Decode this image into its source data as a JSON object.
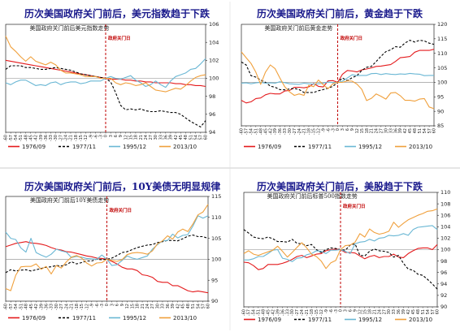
{
  "colors": {
    "title": "#1a1a8c",
    "s1976": "#e41a1c",
    "s1977": "#000000",
    "s1995": "#6ab7d4",
    "s2013": "#f0a03c",
    "marker": "#c00000"
  },
  "xtick_labels": [
    "-60",
    "-57",
    "-54",
    "-51",
    "-48",
    "-45",
    "-42",
    "-39",
    "-36",
    "-33",
    "-30",
    "-27",
    "-24",
    "-21",
    "-18",
    "-15",
    "-12",
    "-9",
    "-6",
    "-3",
    "0",
    "3",
    "6",
    "9",
    "12",
    "15",
    "18",
    "21",
    "24",
    "27",
    "30",
    "33",
    "36",
    "39",
    "42",
    "45",
    "48",
    "51",
    "54",
    "57",
    "60"
  ],
  "legend": [
    "1976/09",
    "1977/11",
    "1995/12",
    "2013/10"
  ],
  "chart_data": [
    {
      "type": "line",
      "title": "历次美国政府关门前后，美元指数趋于下跌",
      "subtitle": "美国政府关门前后美元指数走势",
      "annotation": "政府关门日",
      "ylim": [
        94,
        106
      ],
      "yticks": [
        94,
        96,
        98,
        100,
        102,
        104,
        106
      ],
      "series": [
        {
          "name": "1976/09",
          "values": [
            102,
            101.9,
            101.8,
            101.7,
            101.6,
            101.5,
            101.4,
            101.3,
            101.2,
            101.1,
            101,
            100.9,
            100.8,
            100.7,
            100.6,
            100.5,
            100.4,
            100.3,
            100.2,
            100.1,
            100,
            99.9,
            99.9,
            99.9,
            99.8,
            99.8,
            99.7,
            99.7,
            99.6,
            99.6,
            99.5,
            99.5,
            99.5,
            99.5,
            99.4,
            99.4,
            99.3,
            99.3,
            99.2,
            99.2,
            99.1
          ]
        },
        {
          "name": "1977/11",
          "values": [
            101,
            101.4,
            101.4,
            101.4,
            101.2,
            101.2,
            101.1,
            101,
            101,
            101.1,
            101.2,
            101.1,
            101,
            100.9,
            100.7,
            100.5,
            100.4,
            100.3,
            100.2,
            100.1,
            100,
            99.6,
            98.4,
            97,
            96.5,
            96.6,
            96.5,
            96.6,
            96.4,
            96.3,
            96.3,
            96.4,
            96.3,
            96.2,
            96.2,
            96,
            95.6,
            95.2,
            94.9,
            94.6,
            95.3
          ]
        },
        {
          "name": "1995/12",
          "values": [
            99.5,
            99.3,
            99.6,
            99.8,
            99.8,
            99.5,
            99.2,
            99.3,
            99.2,
            99.5,
            99.6,
            99.3,
            99.5,
            99.6,
            99.6,
            99.4,
            99.5,
            99.7,
            99.7,
            99.7,
            100,
            100.2,
            100,
            99.9,
            100.1,
            100.3,
            99.8,
            99.5,
            99.1,
            99.3,
            99.7,
            99.3,
            99,
            99.7,
            100.2,
            100.4,
            100.6,
            101,
            101.1,
            101.6,
            102.2
          ]
        },
        {
          "name": "2013/10",
          "values": [
            104.7,
            103.5,
            103,
            102.4,
            101.9,
            102.4,
            101.9,
            101.7,
            101.5,
            101.8,
            101.5,
            100.9,
            100.6,
            100.6,
            100.5,
            100.4,
            100.2,
            100.2,
            100.2,
            100,
            100,
            100,
            99.5,
            99.3,
            99.5,
            99.4,
            99.2,
            99.3,
            99.5,
            99.1,
            98.7,
            98.6,
            98.5,
            98.7,
            98.9,
            98.8,
            99.2,
            99.7,
            100.1,
            100.3,
            100.4
          ]
        }
      ]
    },
    {
      "type": "line",
      "title": "历次美国政府关门前后，黄金趋于下跌",
      "subtitle": "美国政府关门前后黄金走势",
      "annotation": "政府关门日",
      "ylim": [
        85,
        120
      ],
      "yticks": [
        85,
        90,
        95,
        100,
        105,
        110,
        115,
        120
      ],
      "series": [
        {
          "name": "1976/09",
          "values": [
            93.8,
            92.9,
            93.3,
            94.4,
            94.6,
            95.7,
            96.2,
            96,
            96,
            97,
            97.2,
            98.3,
            98.3,
            98.1,
            98.4,
            99.6,
            98.6,
            98.4,
            100.5,
            100.6,
            100,
            102.8,
            104.1,
            103.9,
            103.6,
            104.3,
            104.6,
            105,
            105.5,
            105.6,
            105.9,
            106.1,
            107.2,
            108.5,
            108.7,
            108.9,
            110.4,
            111,
            111,
            111,
            111.4
          ]
        },
        {
          "name": "1977/11",
          "values": [
            107,
            106,
            102.3,
            101.8,
            100.8,
            100,
            98.7,
            98.3,
            97.5,
            97.4,
            97.7,
            97.9,
            97.5,
            96.5,
            96.5,
            96.5,
            97.1,
            97.5,
            98,
            98.6,
            100,
            101.5,
            100.6,
            101.6,
            102.3,
            104.1,
            105.2,
            105.5,
            107.2,
            109,
            110.6,
            111.2,
            112.3,
            112.1,
            113.6,
            114.5,
            113.9,
            114.5,
            114.3,
            113.5,
            113.1
          ]
        },
        {
          "name": "1995/12",
          "values": [
            99.7,
            99.8,
            99.5,
            99.8,
            100,
            99.7,
            99.8,
            99.7,
            100.2,
            99.9,
            99.5,
            99.4,
            99.3,
            99.7,
            99.5,
            99.4,
            99.5,
            99.7,
            100.1,
            99.9,
            100,
            100.4,
            101.5,
            102.6,
            102.3,
            102.4,
            102.4,
            103,
            103.1,
            102.7,
            103,
            102.8,
            102.7,
            102.9,
            102.8,
            103.1,
            102.9,
            102.8,
            102.3,
            102.4,
            102.4
          ]
        },
        {
          "name": "2013/10",
          "values": [
            110.5,
            108.5,
            106.5,
            103.5,
            99.3,
            103.5,
            106,
            104.7,
            101.5,
            98.5,
            96.7,
            95.5,
            96,
            95.5,
            99,
            98.5,
            100.8,
            99.2,
            97.8,
            99.5,
            100,
            100,
            100.5,
            100.4,
            99.4,
            97.6,
            93.7,
            94.5,
            96,
            95.2,
            94.2,
            96.3,
            96.5,
            95.4,
            93.8,
            93.8,
            93.5,
            94.2,
            94.4,
            91.5,
            90.9
          ]
        }
      ]
    },
    {
      "type": "line",
      "title": "历次美国政府关门前后，10Y美债无明显规律",
      "subtitle": "美国政府关门前后10Y美债走势",
      "annotation": "政府关门日",
      "ylim": [
        90,
        115
      ],
      "yticks": [
        90,
        95,
        100,
        105,
        110,
        115
      ],
      "series": [
        {
          "name": "1976/09",
          "values": [
            103,
            103.4,
            103.8,
            104,
            104.2,
            103.9,
            103.8,
            103.6,
            103.3,
            102.8,
            102.4,
            102.2,
            101.8,
            101.7,
            101.4,
            101.1,
            100.8,
            100.6,
            100.3,
            100.2,
            100,
            99.5,
            98.9,
            98.1,
            97.7,
            97.7,
            97.3,
            96.3,
            96.1,
            95.7,
            94.7,
            94.5,
            94.5,
            93.7,
            93.7,
            93.1,
            92.5,
            92.2,
            92.4,
            92.2,
            92
          ]
        },
        {
          "name": "1977/11",
          "values": [
            96.8,
            97.5,
            97.2,
            97.4,
            97.5,
            97.2,
            97.5,
            97.8,
            98.1,
            98.2,
            98.5,
            98.4,
            98.7,
            99.4,
            98.9,
            99.2,
            99.6,
            99.6,
            100,
            99.9,
            100,
            100.3,
            100.9,
            101.6,
            101.8,
            102.3,
            102.8,
            103.1,
            103.4,
            103.5,
            104,
            104.2,
            104.5,
            104.5,
            104.4,
            104.9,
            105.5,
            105.8,
            105.4,
            105.4,
            105
          ]
        },
        {
          "name": "1995/12",
          "values": [
            106.5,
            105,
            104.7,
            102.7,
            101.7,
            105,
            101.6,
            101,
            100.5,
            101.2,
            102.4,
            102,
            101.7,
            100.4,
            100.7,
            100.5,
            100.2,
            100.1,
            100,
            101,
            100,
            98.5,
            98.7,
            99.7,
            100.8,
            100.3,
            100,
            100.4,
            100.8,
            102.4,
            103.5,
            104.4,
            104.5,
            106,
            105.1,
            105.7,
            105.9,
            107.9,
            110.4,
            109.8,
            110.4
          ]
        },
        {
          "name": "2013/10",
          "values": [
            93,
            92.5,
            96.2,
            98.2,
            98.3,
            98.3,
            98.9,
            97.6,
            98.3,
            96.5,
            98.5,
            97.9,
            99.4,
            100.5,
            100.9,
            100.3,
            99.1,
            98.4,
            99.1,
            99.2,
            100,
            99.7,
            99.5,
            99.9,
            101.1,
            101.5,
            101.6,
            101.5,
            101.2,
            102,
            103.7,
            104.4,
            105.6,
            104.8,
            106.5,
            107.2,
            106.6,
            108.4,
            110.6,
            111.3,
            113.1
          ]
        }
      ]
    },
    {
      "type": "line",
      "title": "历次美国政府关门前后，美股趋于下跌",
      "subtitle": "美国政府关门前后标普500指数走势",
      "annotation": "政府关门日",
      "ylim": [
        90,
        110
      ],
      "yticks": [
        90,
        92,
        94,
        96,
        98,
        100,
        102,
        104,
        106,
        108,
        110
      ],
      "series": [
        {
          "name": "1976/09",
          "values": [
            97.8,
            97.7,
            97.2,
            96.5,
            96.7,
            97.4,
            97.4,
            97.4,
            97.6,
            97.9,
            98.3,
            98.8,
            99,
            98.6,
            98.9,
            99.2,
            99.3,
            99.8,
            100,
            100.1,
            100,
            99.5,
            99.5,
            99.4,
            98.9,
            98.4,
            98.8,
            99,
            98.6,
            98.8,
            98.8,
            99.2,
            98.7,
            98.6,
            99.3,
            99.8,
            100.2,
            100.3,
            100.3,
            100,
            100.9
          ]
        },
        {
          "name": "1977/11",
          "values": [
            103.5,
            102.9,
            102.2,
            102,
            101.9,
            102.2,
            101.9,
            101.4,
            101.4,
            101.3,
            101.8,
            101.1,
            101,
            100.7,
            100.9,
            100,
            99.5,
            100,
            100.3,
            100.2,
            100,
            99.9,
            100.8,
            101,
            99,
            98.9,
            99.7,
            100.1,
            99.8,
            99.7,
            99.5,
            98.7,
            99,
            97.6,
            96.6,
            96.4,
            95.7,
            95.5,
            94.8,
            94,
            93.1
          ]
        },
        {
          "name": "1995/12",
          "values": [
            98.2,
            98.2,
            98.4,
            98.8,
            98.8,
            99.3,
            99.9,
            100,
            98.5,
            98.3,
            97.9,
            98.5,
            98.6,
            99.1,
            99.3,
            99.8,
            99.7,
            99.3,
            99.9,
            99.9,
            100,
            99.7,
            99.3,
            101,
            101.3,
            101.4,
            101.8,
            101.5,
            102,
            102.1,
            102.5,
            102.4,
            102.5,
            102.8,
            102.5,
            103.5,
            103.9,
            104,
            104.1,
            104.2,
            103.5
          ]
        },
        {
          "name": "2013/10",
          "values": [
            99.3,
            99.8,
            99.2,
            99,
            99.3,
            99.6,
            99.9,
            100.6,
            99.7,
            98.7,
            99.5,
            100.4,
            101.2,
            100.3,
            99.2,
            98.8,
            98,
            96.7,
            97.7,
            98.1,
            100,
            100.7,
            100.8,
            101.3,
            102.8,
            102.2,
            103.6,
            103,
            102.7,
            102.9,
            103.2,
            104.8,
            103.9,
            104.6,
            105.2,
            105.6,
            106,
            106.3,
            106.7,
            106.8,
            107.1
          ]
        }
      ]
    }
  ]
}
